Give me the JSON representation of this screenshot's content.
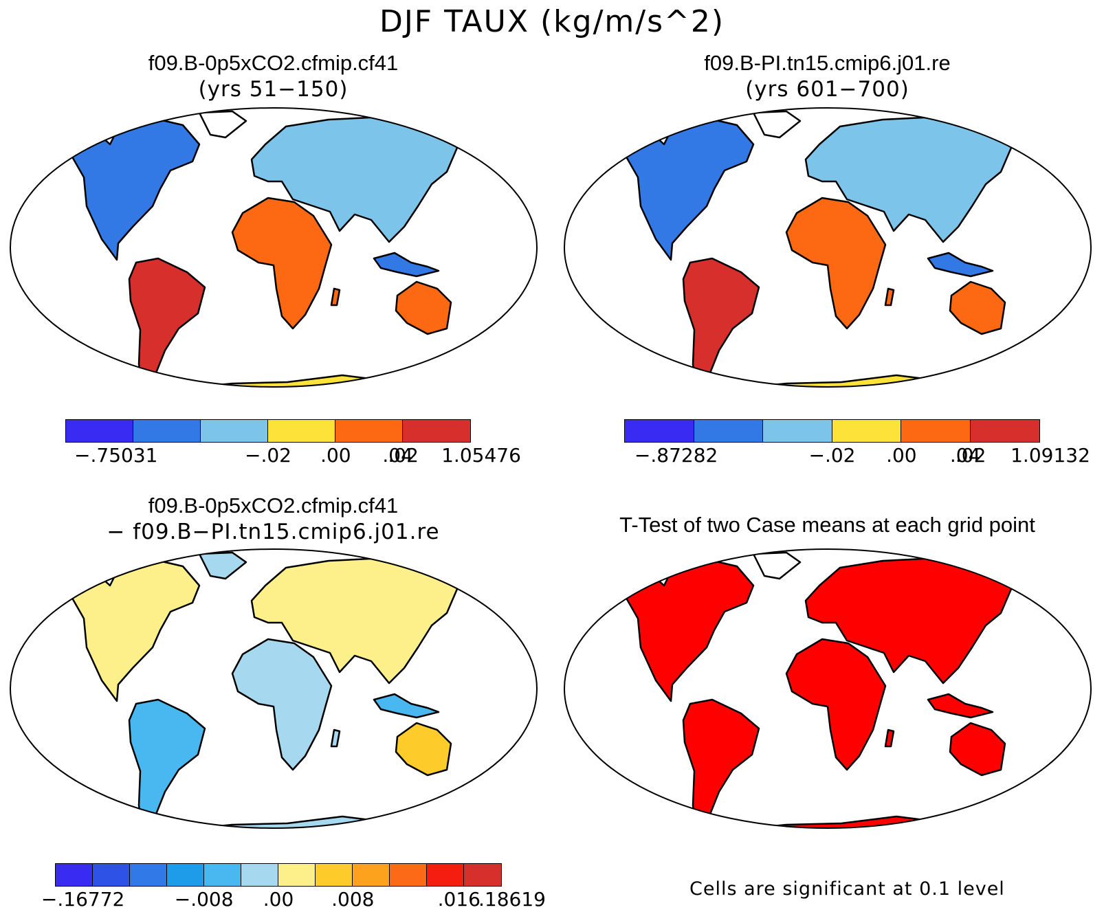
{
  "main_title": "DJF TAUX (kg/m/s^2)",
  "panels": [
    {
      "title_line1": "f09.B-0p5xCO2.cfmip.cf41",
      "title_line2": "(yrs 51−150)"
    },
    {
      "title_line1": "f09.B-PI.tn15.cmip6.j01.re",
      "title_line2": "(yrs 601−700)"
    },
    {
      "title_line1": "f09.B-0p5xCO2.cfmip.cf41",
      "title_line2": "− f09.B−PI.tn15.cmip6.j01.re"
    },
    {
      "title_line1": "T-Test of two Case means at each grid point",
      "title_line2": ""
    }
  ],
  "colorbars": [
    {
      "colors": [
        "#3a2bf2",
        "#3279e6",
        "#7cc4ea",
        "#fde23a",
        "#fd6812",
        "#d72f2b"
      ],
      "labels": [
        "−.75031",
        "−.02",
        ".00",
        ".02",
        ".04",
        "1.05476"
      ],
      "boundaries": [
        -0.75031,
        -0.02,
        0.0,
        0.02,
        0.04,
        1.05476
      ]
    },
    {
      "colors": [
        "#3a2bf2",
        "#3279e6",
        "#7cc4ea",
        "#fde23a",
        "#fd6812",
        "#d72f2b"
      ],
      "labels": [
        "−.87282",
        "−.02",
        ".00",
        ".02",
        ".04",
        "1.09132"
      ],
      "boundaries": [
        -0.87282,
        -0.02,
        0.0,
        0.02,
        0.04,
        1.09132
      ]
    },
    {
      "colors": [
        "#3a2bf2",
        "#2f52e6",
        "#3079e6",
        "#1e9be9",
        "#49b8f0",
        "#a6d8f0",
        "#fdf08a",
        "#fdcc2a",
        "#fda21c",
        "#fc6a17",
        "#f51c10",
        "#d72f2b"
      ],
      "labels": [
        "−.16772",
        "−.008",
        ".00",
        ".008",
        ".016",
        ".18619"
      ],
      "boundaries": [
        -0.16772,
        -0.008,
        0.0,
        0.008,
        0.016,
        0.18619
      ]
    }
  ],
  "significance_note": "Cells are significant at 0.1 level",
  "significance_color": "#ff0000",
  "land_outline_color": "#000000"
}
